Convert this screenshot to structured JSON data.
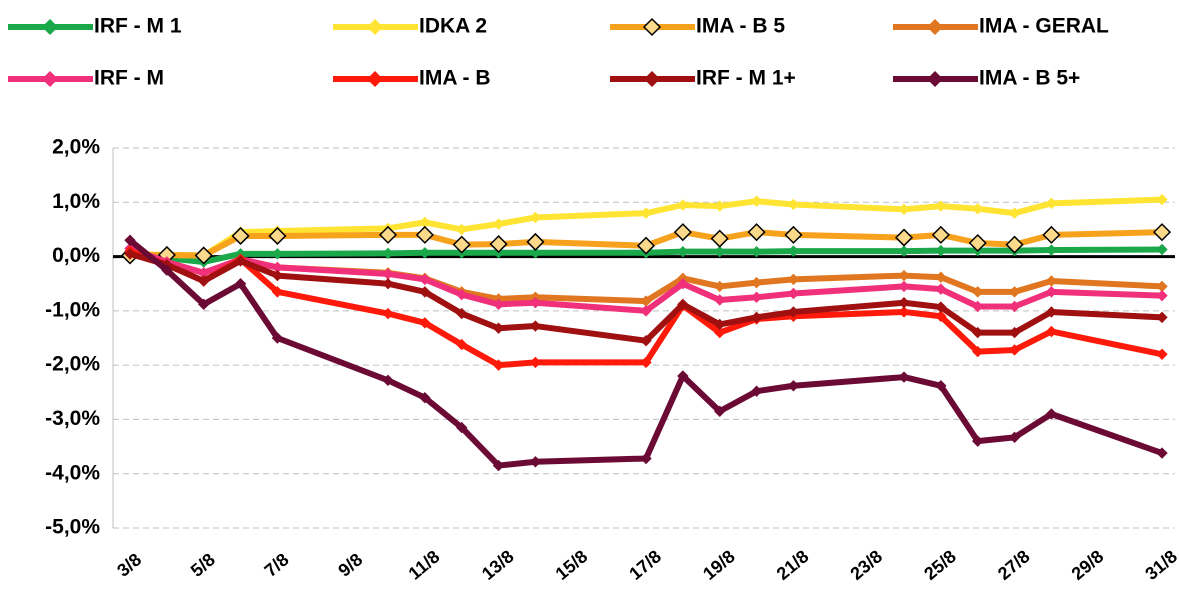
{
  "chart_data": {
    "type": "line",
    "x": [
      3,
      4,
      5,
      6,
      7,
      10,
      11,
      12,
      13,
      14,
      17,
      18,
      19,
      20,
      21,
      24,
      25,
      26,
      27,
      28,
      31
    ],
    "xlim": [
      3,
      31
    ],
    "xticks": [
      {
        "value": 3,
        "label": "3/8"
      },
      {
        "value": 5,
        "label": "5/8"
      },
      {
        "value": 7,
        "label": "7/8"
      },
      {
        "value": 9,
        "label": "9/8"
      },
      {
        "value": 11,
        "label": "11/8"
      },
      {
        "value": 13,
        "label": "13/8"
      },
      {
        "value": 15,
        "label": "15/8"
      },
      {
        "value": 17,
        "label": "17/8"
      },
      {
        "value": 19,
        "label": "19/8"
      },
      {
        "value": 21,
        "label": "21/8"
      },
      {
        "value": 23,
        "label": "23/8"
      },
      {
        "value": 25,
        "label": "25/8"
      },
      {
        "value": 27,
        "label": "27/8"
      },
      {
        "value": 29,
        "label": "29/8"
      },
      {
        "value": 31,
        "label": "31/8"
      }
    ],
    "ylim": [
      -5,
      2
    ],
    "yticks": [
      {
        "value": -5,
        "label": "-5,0%"
      },
      {
        "value": -4,
        "label": "-4,0%"
      },
      {
        "value": -3,
        "label": "-3,0%"
      },
      {
        "value": -2,
        "label": "-2,0%"
      },
      {
        "value": -1,
        "label": "-1,0%"
      },
      {
        "value": 0,
        "label": "0,0%"
      },
      {
        "value": 1,
        "label": "1,0%"
      },
      {
        "value": 2,
        "label": "2,0%"
      }
    ],
    "grid": true,
    "zero_line": true,
    "legend": "top",
    "series": [
      {
        "name": "IRF - M 1",
        "color": "#1ba84b",
        "values": [
          0.02,
          -0.03,
          -0.1,
          0.05,
          0.05,
          0.06,
          0.07,
          0.07,
          0.07,
          0.07,
          0.07,
          0.09,
          0.09,
          0.09,
          0.1,
          0.1,
          0.11,
          0.11,
          0.11,
          0.12,
          0.13
        ]
      },
      {
        "name": "IDKA 2",
        "color": "#ffe433",
        "values": [
          0.05,
          0.03,
          0.02,
          0.45,
          0.47,
          0.52,
          0.63,
          0.5,
          0.6,
          0.72,
          0.8,
          0.95,
          0.93,
          1.02,
          0.96,
          0.87,
          0.93,
          0.88,
          0.8,
          0.98,
          1.05
        ]
      },
      {
        "name": "IMA - B 5",
        "color": "#f7a21c",
        "marker_fill": "#fbd98a",
        "marker_edge": "#000000",
        "values": [
          0.02,
          0.03,
          0.02,
          0.38,
          0.38,
          0.4,
          0.4,
          0.22,
          0.23,
          0.27,
          0.2,
          0.45,
          0.33,
          0.45,
          0.4,
          0.35,
          0.4,
          0.25,
          0.22,
          0.4,
          0.45
        ]
      },
      {
        "name": "IMA - GERAL",
        "color": "#e0761f",
        "values": [
          0.05,
          -0.1,
          -0.3,
          -0.05,
          -0.2,
          -0.3,
          -0.4,
          -0.65,
          -0.78,
          -0.75,
          -0.82,
          -0.4,
          -0.55,
          -0.48,
          -0.42,
          -0.35,
          -0.38,
          -0.65,
          -0.65,
          -0.45,
          -0.55
        ]
      },
      {
        "name": "IRF - M",
        "color": "#f0307a",
        "values": [
          0.15,
          -0.1,
          -0.3,
          -0.05,
          -0.2,
          -0.32,
          -0.42,
          -0.7,
          -0.88,
          -0.85,
          -1.0,
          -0.5,
          -0.8,
          -0.75,
          -0.68,
          -0.55,
          -0.6,
          -0.92,
          -0.92,
          -0.65,
          -0.72
        ]
      },
      {
        "name": "IMA - B",
        "color": "#fe1a0a",
        "values": [
          0.1,
          -0.15,
          -0.45,
          -0.05,
          -0.65,
          -1.05,
          -1.22,
          -1.62,
          -2.0,
          -1.95,
          -1.95,
          -0.9,
          -1.4,
          -1.15,
          -1.1,
          -1.02,
          -1.1,
          -1.75,
          -1.72,
          -1.38,
          -1.8
        ]
      },
      {
        "name": "IRF - M 1+",
        "color": "#a01010",
        "values": [
          0.05,
          -0.15,
          -0.45,
          -0.08,
          -0.35,
          -0.5,
          -0.65,
          -1.05,
          -1.32,
          -1.28,
          -1.55,
          -0.88,
          -1.25,
          -1.12,
          -1.02,
          -0.85,
          -0.93,
          -1.4,
          -1.4,
          -1.02,
          -1.12
        ]
      },
      {
        "name": "IMA - B 5+",
        "color": "#6a0a35",
        "values": [
          0.3,
          -0.25,
          -0.88,
          -0.5,
          -1.5,
          -2.28,
          -2.6,
          -3.15,
          -3.85,
          -3.78,
          -3.72,
          -2.2,
          -2.85,
          -2.48,
          -2.38,
          -2.22,
          -2.38,
          -3.4,
          -3.33,
          -2.9,
          -3.62
        ]
      }
    ]
  }
}
